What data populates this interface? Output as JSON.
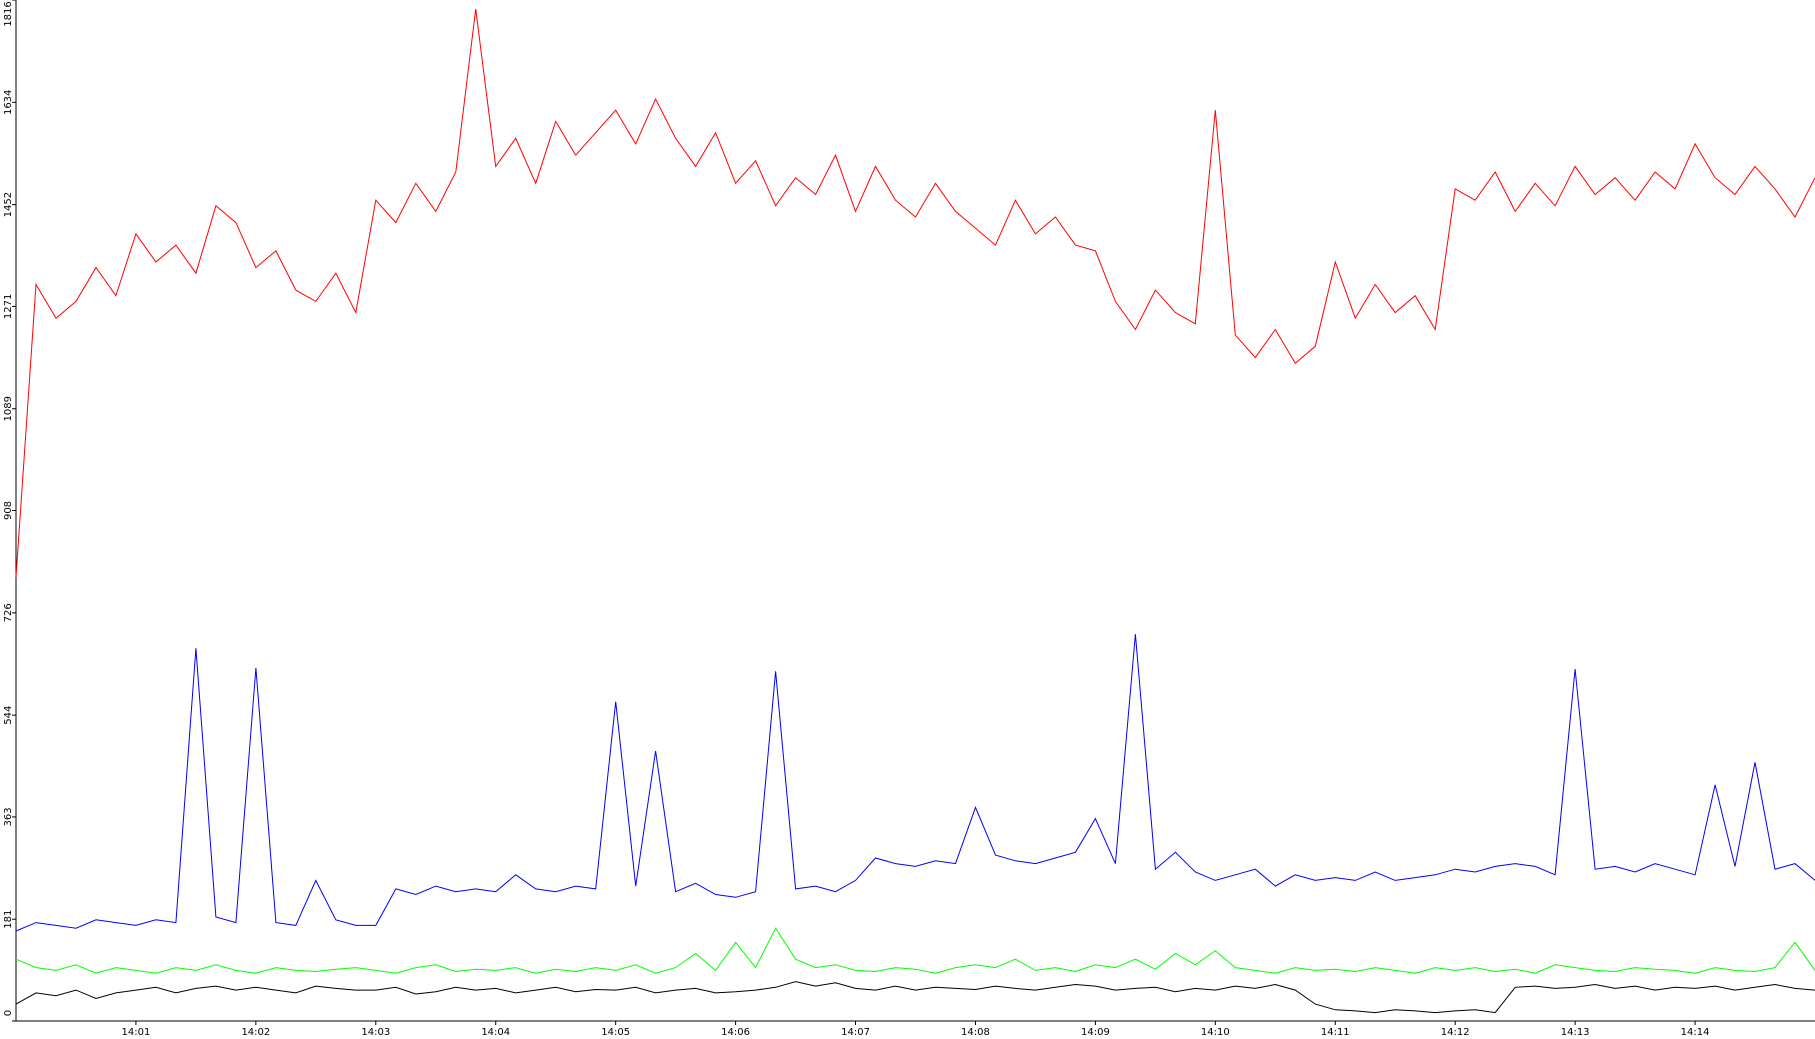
{
  "chart_data": {
    "type": "line",
    "categories": [
      null,
      null,
      null,
      null,
      null,
      null,
      "14:01",
      null,
      null,
      null,
      null,
      null,
      "14:02",
      null,
      null,
      null,
      null,
      null,
      "14:03",
      null,
      null,
      null,
      null,
      null,
      "14:04",
      null,
      null,
      null,
      null,
      null,
      "14:05",
      null,
      null,
      null,
      null,
      null,
      "14:06",
      null,
      null,
      null,
      null,
      null,
      "14:07",
      null,
      null,
      null,
      null,
      null,
      "14:08",
      null,
      null,
      null,
      null,
      null,
      "14:09",
      null,
      null,
      null,
      null,
      null,
      "14:10",
      null,
      null,
      null,
      null,
      null,
      "14:11",
      null,
      null,
      null,
      null,
      null,
      "14:12",
      null,
      null,
      null,
      null,
      null,
      "14:13",
      null,
      null,
      null,
      null,
      null,
      "14:14",
      null,
      null,
      null,
      null,
      null,
      null
    ],
    "series": [
      {
        "name": "red",
        "color": "#ff0000",
        "values": [
          790,
          1310,
          1250,
          1280,
          1340,
          1290,
          1400,
          1350,
          1380,
          1330,
          1450,
          1420,
          1340,
          1370,
          1300,
          1280,
          1330,
          1260,
          1460,
          1420,
          1490,
          1440,
          1510,
          1800,
          1520,
          1570,
          1490,
          1600,
          1540,
          1580,
          1620,
          1560,
          1640,
          1570,
          1520,
          1580,
          1490,
          1530,
          1450,
          1500,
          1470,
          1540,
          1440,
          1520,
          1460,
          1430,
          1490,
          1440,
          1410,
          1380,
          1460,
          1400,
          1430,
          1380,
          1370,
          1280,
          1230,
          1300,
          1260,
          1240,
          1620,
          1220,
          1180,
          1230,
          1170,
          1200,
          1350,
          1250,
          1310,
          1260,
          1290,
          1230,
          1480,
          1460,
          1510,
          1440,
          1490,
          1450,
          1520,
          1470,
          1500,
          1460,
          1510,
          1480,
          1560,
          1500,
          1470,
          1520,
          1480,
          1430,
          1500
        ]
      },
      {
        "name": "blue",
        "color": "#0000ff",
        "values": [
          160,
          175,
          170,
          165,
          180,
          175,
          170,
          180,
          175,
          663,
          185,
          175,
          628,
          175,
          170,
          250,
          180,
          170,
          170,
          235,
          225,
          240,
          230,
          235,
          230,
          260,
          235,
          230,
          240,
          235,
          568,
          240,
          480,
          230,
          245,
          225,
          220,
          230,
          622,
          235,
          240,
          230,
          250,
          290,
          280,
          275,
          285,
          280,
          380,
          295,
          285,
          280,
          290,
          300,
          360,
          280,
          688,
          270,
          300,
          265,
          250,
          260,
          270,
          240,
          260,
          250,
          255,
          250,
          265,
          250,
          255,
          260,
          270,
          265,
          275,
          280,
          275,
          260,
          626,
          270,
          275,
          265,
          280,
          270,
          260,
          420,
          275,
          460,
          270,
          280,
          250
        ]
      },
      {
        "name": "green",
        "color": "#00ff00",
        "values": [
          110,
          95,
          90,
          100,
          85,
          95,
          90,
          85,
          95,
          90,
          100,
          90,
          85,
          95,
          90,
          88,
          92,
          95,
          90,
          85,
          95,
          100,
          88,
          92,
          90,
          95,
          85,
          92,
          88,
          95,
          90,
          100,
          85,
          95,
          120,
          90,
          140,
          95,
          165,
          110,
          95,
          100,
          90,
          88,
          95,
          92,
          85,
          95,
          100,
          95,
          110,
          90,
          95,
          88,
          100,
          95,
          110,
          92,
          120,
          100,
          125,
          95,
          90,
          85,
          95,
          90,
          92,
          88,
          95,
          90,
          85,
          95,
          90,
          95,
          88,
          92,
          85,
          100,
          95,
          90,
          88,
          95,
          92,
          90,
          85,
          95,
          90,
          88,
          95,
          140,
          90
        ]
      },
      {
        "name": "black",
        "color": "#000000",
        "values": [
          30,
          50,
          45,
          55,
          40,
          50,
          55,
          60,
          50,
          58,
          62,
          55,
          60,
          55,
          50,
          62,
          58,
          55,
          55,
          60,
          48,
          52,
          60,
          55,
          58,
          50,
          55,
          60,
          52,
          56,
          55,
          60,
          50,
          55,
          58,
          50,
          52,
          55,
          60,
          70,
          62,
          68,
          58,
          55,
          62,
          55,
          60,
          58,
          56,
          62,
          58,
          55,
          60,
          65,
          62,
          55,
          58,
          60,
          52,
          58,
          55,
          62,
          58,
          65,
          55,
          30,
          20,
          18,
          15,
          20,
          18,
          15,
          18,
          20,
          15,
          60,
          62,
          58,
          60,
          65,
          58,
          62,
          55,
          60,
          58,
          62,
          55,
          60,
          65,
          58,
          55
        ]
      }
    ],
    "ylim": [
      0,
      1816
    ],
    "yticks": [
      0,
      181,
      363,
      544,
      726,
      908,
      1089,
      1271,
      1452,
      1634,
      1816
    ],
    "grid": false
  }
}
